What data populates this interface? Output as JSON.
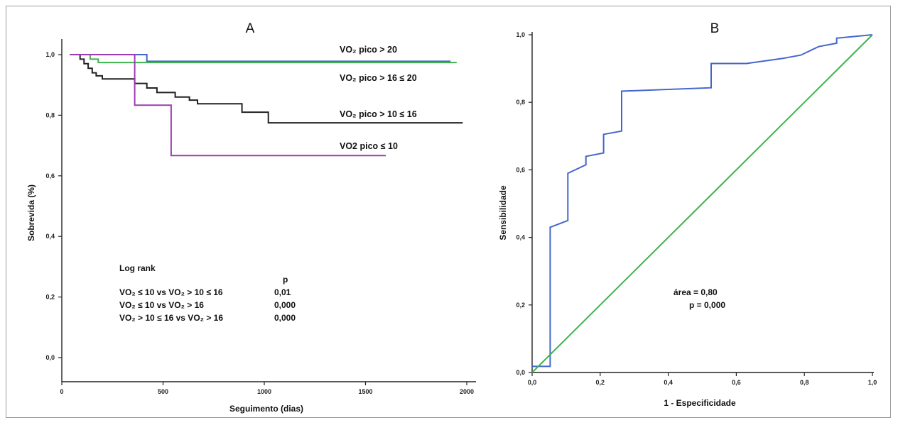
{
  "chart_data": [
    {
      "type": "line",
      "panel_title": "A",
      "xlabel": "Seguimento (dias)",
      "ylabel": "Sobrevida (%)",
      "xlim": [
        0,
        2000
      ],
      "ylim": [
        0,
        1.0
      ],
      "xticks": [
        "0",
        "500",
        "1000",
        "1500",
        "2000"
      ],
      "yticks": [
        "0,0",
        "0,2",
        "0,4",
        "0,6",
        "0,8",
        "1,0"
      ],
      "xtick_values": [
        0,
        500,
        1000,
        1500,
        2000
      ],
      "ytick_values": [
        0,
        0.2,
        0.4,
        0.6,
        0.8,
        1.0
      ],
      "step": true,
      "series": [
        {
          "name": "VO₂ pico > 20",
          "color": "#4466cc",
          "x": [
            40,
            420,
            420,
            1920
          ],
          "y": [
            1.0,
            1.0,
            0.978,
            0.978
          ]
        },
        {
          "name": "VO₂ pico > 16 ≤ 20",
          "color": "#3cb44b",
          "x": [
            40,
            140,
            140,
            180,
            180,
            1950
          ],
          "y": [
            1.0,
            1.0,
            0.985,
            0.985,
            0.974,
            0.974
          ]
        },
        {
          "name": "VO₂ pico > 10 ≤ 16",
          "color": "#222222",
          "x": [
            40,
            90,
            90,
            110,
            110,
            130,
            130,
            150,
            150,
            170,
            170,
            200,
            200,
            360,
            360,
            420,
            420,
            470,
            470,
            560,
            560,
            630,
            630,
            670,
            670,
            890,
            890,
            1020,
            1020,
            1980
          ],
          "y": [
            1.0,
            1.0,
            0.985,
            0.985,
            0.97,
            0.97,
            0.955,
            0.955,
            0.94,
            0.94,
            0.93,
            0.93,
            0.92,
            0.92,
            0.905,
            0.905,
            0.89,
            0.89,
            0.875,
            0.875,
            0.86,
            0.86,
            0.85,
            0.85,
            0.838,
            0.838,
            0.81,
            0.81,
            0.775,
            0.775
          ]
        },
        {
          "name": "VO2 pico ≤ 10",
          "color": "#9b3cb0",
          "x": [
            40,
            360,
            360,
            540,
            540,
            1600
          ],
          "y": [
            1.0,
            1.0,
            0.833,
            0.833,
            0.667,
            0.667
          ]
        }
      ],
      "annotation": {
        "title": "Log rank",
        "p_header": "p",
        "rows": [
          {
            "label": "VO₂ ≤ 10 vs VO₂ > 10 ≤ 16",
            "p": "0,01"
          },
          {
            "label": "VO₂ ≤ 10 vs VO₂ > 16",
            "p": "0,000"
          },
          {
            "label": "VO₂ > 10 ≤ 16 vs VO₂ > 16",
            "p": "0,000"
          }
        ]
      }
    },
    {
      "type": "line",
      "panel_title": "B",
      "xlabel": "1 - Especificidade",
      "ylabel": "Sensibilidade",
      "xlim": [
        0,
        1.0
      ],
      "ylim": [
        0,
        1.0
      ],
      "xticks": [
        "0,0",
        "0,2",
        "0,4",
        "0,6",
        "0,8",
        "1,0"
      ],
      "yticks": [
        "0,0",
        "0,2",
        "0,4",
        "0,6",
        "0,8",
        "1,0"
      ],
      "xtick_values": [
        0,
        0.2,
        0.4,
        0.6,
        0.8,
        1.0
      ],
      "ytick_values": [
        0,
        0.2,
        0.4,
        0.6,
        0.8,
        1.0
      ],
      "series": [
        {
          "name": "",
          "color": "#4466cc",
          "x": [
            0.0,
            0.053,
            0.053,
            0.105,
            0.105,
            0.158,
            0.158,
            0.21,
            0.21,
            0.263,
            0.263,
            0.526,
            0.526,
            0.63,
            0.737,
            0.79,
            0.842,
            0.895,
            0.895,
            1.0
          ],
          "y": [
            0.018,
            0.018,
            0.43,
            0.45,
            0.59,
            0.615,
            0.64,
            0.65,
            0.705,
            0.715,
            0.833,
            0.843,
            0.915,
            0.915,
            0.93,
            0.94,
            0.965,
            0.975,
            0.99,
            1.0
          ]
        },
        {
          "name": "",
          "color": "#3cb44b",
          "x": [
            0,
            1.0
          ],
          "y": [
            0,
            1.0
          ]
        }
      ],
      "annotation": {
        "area": "área = 0,80",
        "p": "p = 0,000"
      }
    }
  ]
}
